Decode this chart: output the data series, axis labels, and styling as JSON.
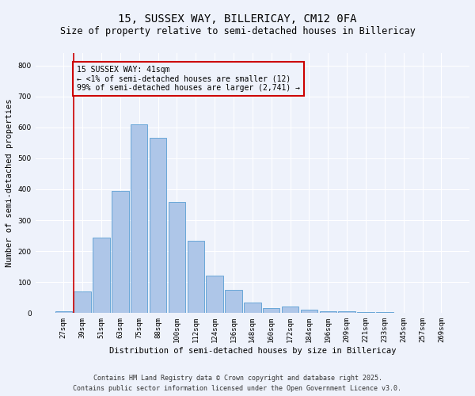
{
  "title": "15, SUSSEX WAY, BILLERICAY, CM12 0FA",
  "subtitle": "Size of property relative to semi-detached houses in Billericay",
  "xlabel": "Distribution of semi-detached houses by size in Billericay",
  "ylabel": "Number of semi-detached properties",
  "categories": [
    "27sqm",
    "39sqm",
    "51sqm",
    "63sqm",
    "75sqm",
    "88sqm",
    "100sqm",
    "112sqm",
    "124sqm",
    "136sqm",
    "148sqm",
    "160sqm",
    "172sqm",
    "184sqm",
    "196sqm",
    "209sqm",
    "221sqm",
    "233sqm",
    "245sqm",
    "257sqm",
    "269sqm"
  ],
  "values": [
    5,
    70,
    245,
    395,
    610,
    565,
    360,
    235,
    120,
    75,
    35,
    17,
    22,
    10,
    5,
    5,
    3,
    3,
    2,
    2,
    1
  ],
  "bar_color": "#aec6e8",
  "bar_edge_color": "#5a9fd4",
  "vline_color": "#cc0000",
  "annotation_text": "15 SUSSEX WAY: 41sqm\n← <1% of semi-detached houses are smaller (12)\n99% of semi-detached houses are larger (2,741) →",
  "annotation_box_edge_color": "#cc0000",
  "ylim": [
    0,
    840
  ],
  "yticks": [
    0,
    100,
    200,
    300,
    400,
    500,
    600,
    700,
    800
  ],
  "footnote1": "Contains HM Land Registry data © Crown copyright and database right 2025.",
  "footnote2": "Contains public sector information licensed under the Open Government Licence v3.0.",
  "background_color": "#eef2fb",
  "grid_color": "#ffffff",
  "title_fontsize": 10,
  "subtitle_fontsize": 8.5,
  "axis_label_fontsize": 7.5,
  "tick_fontsize": 6.5,
  "annotation_fontsize": 7,
  "footnote_fontsize": 6
}
